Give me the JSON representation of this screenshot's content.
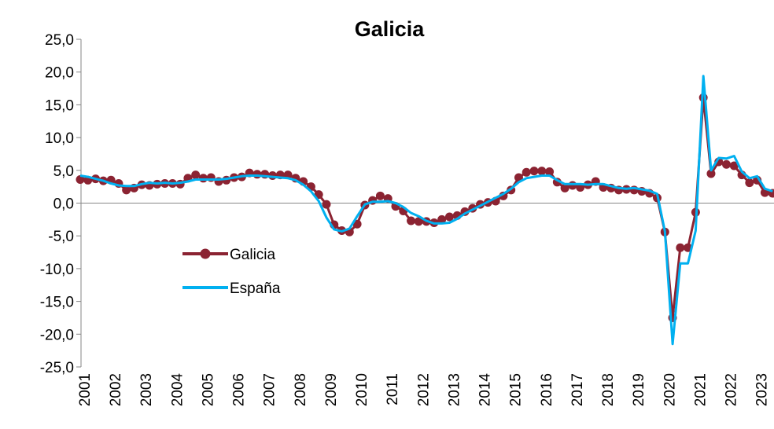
{
  "chart_data": {
    "type": "line",
    "title": "Galicia",
    "categories": [
      "2001",
      null,
      null,
      null,
      "2002",
      null,
      null,
      null,
      "2003",
      null,
      null,
      null,
      "2004",
      null,
      null,
      null,
      "2005",
      null,
      null,
      null,
      "2006",
      null,
      null,
      null,
      "2007",
      null,
      null,
      null,
      "2008",
      null,
      null,
      null,
      "2009",
      null,
      null,
      null,
      "2010",
      null,
      null,
      null,
      "2011",
      null,
      null,
      null,
      "2012",
      null,
      null,
      null,
      "2013",
      null,
      null,
      null,
      "2014",
      null,
      null,
      null,
      "2015",
      null,
      null,
      null,
      "2016",
      null,
      null,
      null,
      "2017",
      null,
      null,
      null,
      "2018",
      null,
      null,
      null,
      "2019",
      null,
      null,
      null,
      "2020",
      null,
      null,
      null,
      "2021",
      null,
      null,
      null,
      "2022",
      null,
      null,
      null,
      "2023",
      null,
      null
    ],
    "series": [
      {
        "name": "Galicia",
        "color": "#8b2332",
        "marker": true,
        "values": [
          3.6,
          3.5,
          3.7,
          3.4,
          3.5,
          3.0,
          2.0,
          2.3,
          2.8,
          2.7,
          2.9,
          3.0,
          3.0,
          2.9,
          3.8,
          4.3,
          3.8,
          3.9,
          3.3,
          3.5,
          3.9,
          4.0,
          4.6,
          4.4,
          4.4,
          4.2,
          4.3,
          4.3,
          3.8,
          3.3,
          2.5,
          1.3,
          -0.2,
          -3.3,
          -4.2,
          -4.4,
          -3.2,
          -0.3,
          0.4,
          1.1,
          0.7,
          -0.5,
          -1.2,
          -2.7,
          -2.8,
          -2.8,
          -3.0,
          -2.5,
          -2.1,
          -1.9,
          -1.3,
          -0.8,
          -0.2,
          0.1,
          0.3,
          1.1,
          2.0,
          3.9,
          4.7,
          4.9,
          4.9,
          4.8,
          3.2,
          2.3,
          2.7,
          2.4,
          2.8,
          3.3,
          2.4,
          2.3,
          2.0,
          2.1,
          2.0,
          1.8,
          1.5,
          0.8,
          -4.4,
          -17.5,
          -6.8,
          -6.8,
          -1.4,
          16.1,
          4.5,
          6.3,
          5.9,
          5.7,
          4.3,
          3.1,
          3.5,
          1.6,
          1.5
        ]
      },
      {
        "name": "España",
        "color": "#00b0f0",
        "marker": false,
        "values": [
          4.2,
          4.0,
          3.7,
          3.4,
          3.0,
          2.7,
          2.6,
          2.6,
          2.9,
          3.1,
          3.0,
          3.1,
          3.0,
          3.1,
          3.3,
          3.6,
          3.6,
          3.6,
          3.6,
          3.7,
          3.9,
          4.1,
          4.2,
          4.2,
          4.1,
          4.0,
          3.9,
          3.8,
          3.5,
          2.8,
          1.8,
          0.3,
          -2.2,
          -4.0,
          -4.3,
          -3.9,
          -2.0,
          -0.2,
          0.2,
          0.2,
          0.3,
          0.0,
          -0.6,
          -1.5,
          -2.0,
          -2.7,
          -3.1,
          -3.1,
          -3.0,
          -2.4,
          -1.6,
          -1.0,
          -0.4,
          0.2,
          0.8,
          1.4,
          2.2,
          3.2,
          3.8,
          4.0,
          4.2,
          4.2,
          3.5,
          2.9,
          2.9,
          2.9,
          2.8,
          2.9,
          2.9,
          2.6,
          2.3,
          2.2,
          2.3,
          2.1,
          1.9,
          1.4,
          -4.3,
          -21.5,
          -9.2,
          -9.2,
          -4.2,
          19.4,
          5.0,
          6.9,
          6.8,
          7.2,
          4.8,
          3.8,
          4.1,
          2.2,
          1.8
        ]
      }
    ],
    "ylim": [
      -25,
      25
    ],
    "yticks": [
      {
        "value": -25,
        "label": "-25,0"
      },
      {
        "value": -20,
        "label": "-20,0"
      },
      {
        "value": -15,
        "label": "-15,0"
      },
      {
        "value": -10,
        "label": "-10,0"
      },
      {
        "value": -5,
        "label": "-5,0"
      },
      {
        "value": 0,
        "label": "0,0"
      },
      {
        "value": 5,
        "label": "5,0"
      },
      {
        "value": 10,
        "label": "10,0"
      },
      {
        "value": 15,
        "label": "15,0"
      },
      {
        "value": 20,
        "label": "20,0"
      },
      {
        "value": 25,
        "label": "25,0"
      }
    ],
    "legend": "center-left"
  }
}
